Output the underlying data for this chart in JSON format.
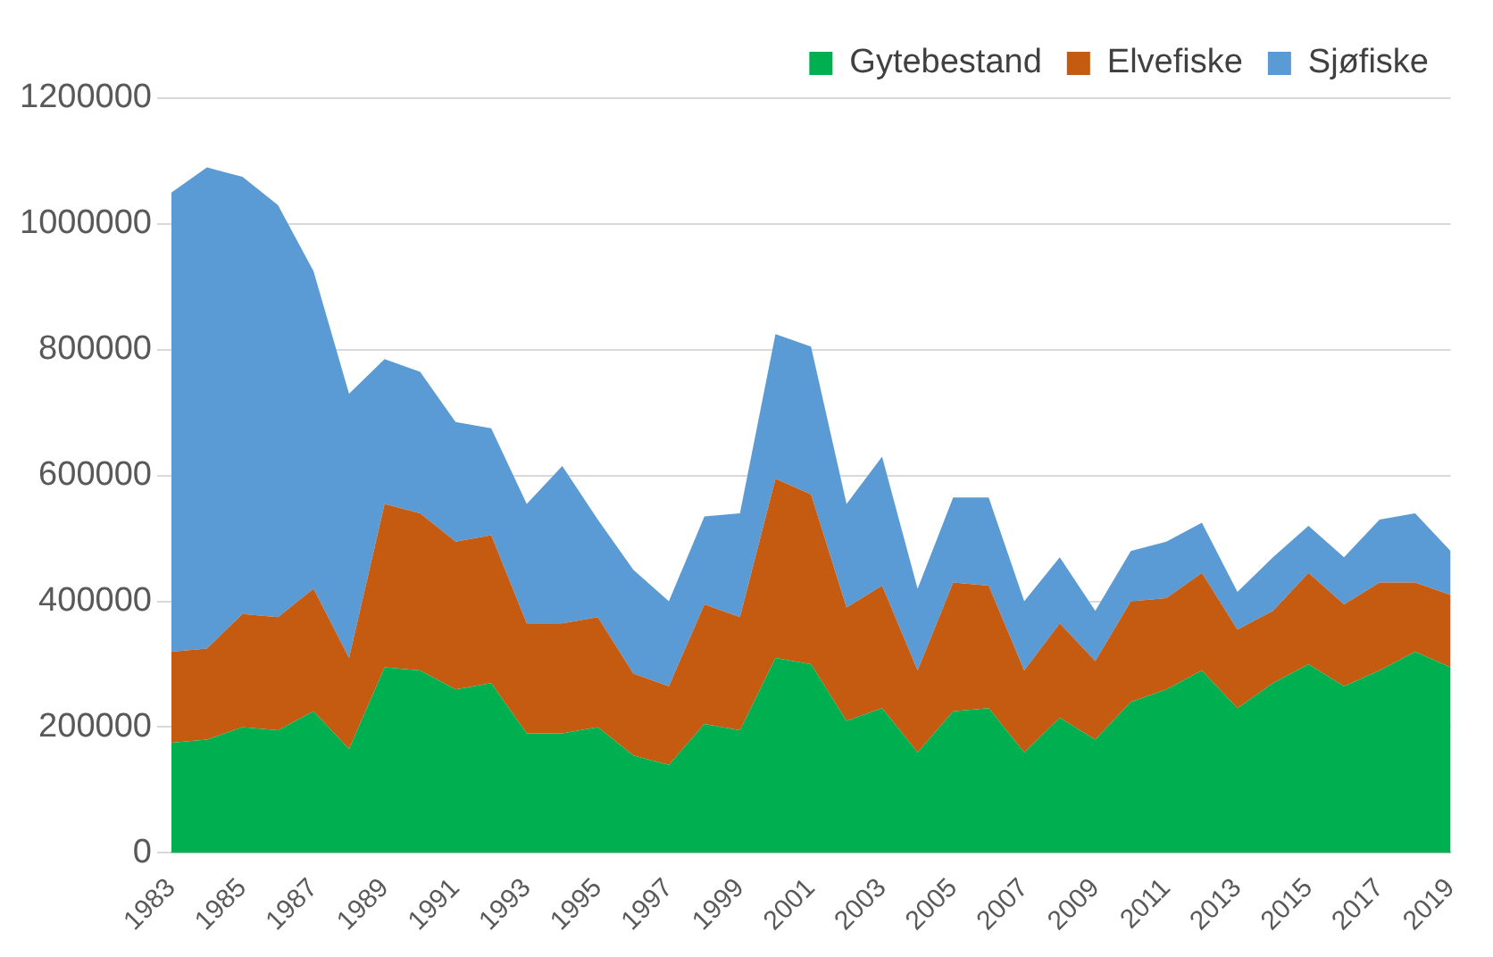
{
  "chart_data": {
    "type": "area",
    "stacked": true,
    "categories": [
      "1983",
      null,
      "1985",
      null,
      "1987",
      null,
      "1989",
      null,
      "1991",
      null,
      "1993",
      null,
      "1995",
      null,
      "1997",
      null,
      "1999",
      null,
      "2001",
      null,
      "2003",
      null,
      "2005",
      null,
      "2007",
      null,
      "2009",
      null,
      "2011",
      null,
      "2013",
      null,
      "2015",
      null,
      "2017",
      null,
      "2019"
    ],
    "series": [
      {
        "name": "Gytebestand",
        "color": "#00b050",
        "values": [
          175000,
          180000,
          200000,
          195000,
          225000,
          165000,
          295000,
          290000,
          260000,
          270000,
          190000,
          190000,
          200000,
          155000,
          140000,
          205000,
          195000,
          310000,
          300000,
          210000,
          230000,
          160000,
          225000,
          230000,
          160000,
          215000,
          180000,
          240000,
          260000,
          290000,
          230000,
          270000,
          300000,
          265000,
          290000,
          320000,
          295000
        ]
      },
      {
        "name": "Elvefiske",
        "color": "#c55a11",
        "values": [
          145000,
          145000,
          180000,
          180000,
          195000,
          145000,
          260000,
          250000,
          235000,
          235000,
          175000,
          175000,
          175000,
          130000,
          125000,
          190000,
          180000,
          285000,
          270000,
          180000,
          195000,
          130000,
          205000,
          195000,
          130000,
          150000,
          125000,
          160000,
          145000,
          155000,
          125000,
          115000,
          145000,
          130000,
          140000,
          110000,
          115000
        ]
      },
      {
        "name": "Sjøfiske",
        "color": "#5b9bd5",
        "values": [
          730000,
          765000,
          695000,
          655000,
          505000,
          420000,
          230000,
          225000,
          190000,
          170000,
          190000,
          250000,
          155000,
          165000,
          135000,
          140000,
          165000,
          230000,
          235000,
          165000,
          205000,
          130000,
          135000,
          140000,
          110000,
          105000,
          80000,
          80000,
          90000,
          80000,
          60000,
          85000,
          75000,
          75000,
          100000,
          110000,
          70000
        ]
      }
    ],
    "ylim": [
      0,
      1200000
    ],
    "yticks": [
      0,
      200000,
      400000,
      600000,
      800000,
      1000000,
      1200000
    ],
    "grid": "y",
    "legend": "top right",
    "marker": "none"
  }
}
